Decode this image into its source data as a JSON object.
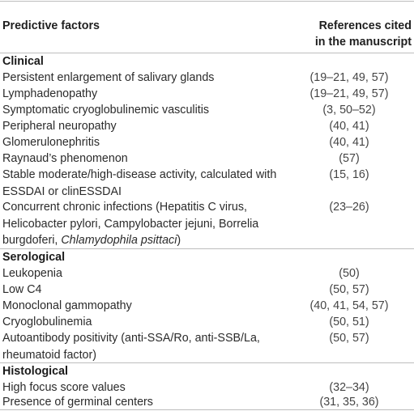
{
  "header": {
    "col_factors": "Predictive factors",
    "col_refs_line1": "References cited",
    "col_refs_line2": "in the manuscript"
  },
  "sections": [
    {
      "title": "Clinical",
      "rows": [
        {
          "factor": [
            "Persistent enlargement of salivary glands"
          ],
          "refs": "(19–21, 49, 57)"
        },
        {
          "factor": [
            "Lymphadenopathy"
          ],
          "refs": "(19–21, 49, 57)"
        },
        {
          "factor": [
            "Symptomatic cryoglobulinemic vasculitis"
          ],
          "refs": "(3, 50–52)"
        },
        {
          "factor": [
            "Peripheral neuropathy"
          ],
          "refs": "(40, 41)"
        },
        {
          "factor": [
            "Glomerulonephritis"
          ],
          "refs": "(40, 41)"
        },
        {
          "factor": [
            "Raynaud’s phenomenon"
          ],
          "refs": "(57)"
        },
        {
          "factor": [
            "Stable moderate/high-disease activity, calculated with",
            "ESSDAI or clinESSDAI"
          ],
          "refs": "(15, 16)"
        },
        {
          "factor": [
            "Concurrent chronic infections (Hepatitis C virus,",
            "Helicobacter pylori, Campylobacter jejuni, Borrelia",
            "burgdoferi, "
          ],
          "italic_tail": "Chlamydophila psittaci",
          "tail_after": ")",
          "refs": "(23–26)"
        }
      ]
    },
    {
      "title": "Serological",
      "rows": [
        {
          "factor": [
            "Leukopenia"
          ],
          "refs": "(50)"
        },
        {
          "factor": [
            "Low C4"
          ],
          "refs": "(50, 57)"
        },
        {
          "factor": [
            "Monoclonal gammopathy"
          ],
          "refs": "(40, 41, 54, 57)"
        },
        {
          "factor": [
            "Cryoglobulinemia"
          ],
          "refs": "(50, 51)"
        },
        {
          "factor": [
            "Autoantibody positivity (anti-SSA/Ro, anti-SSB/La,",
            "rheumatoid factor)"
          ],
          "refs": "(50, 57)"
        }
      ]
    },
    {
      "title": "Histological",
      "rows": [
        {
          "factor": [
            "High focus score values"
          ],
          "refs": "(32–34)"
        },
        {
          "factor": [
            "Presence of germinal centers"
          ],
          "refs": "(31, 35, 36)"
        }
      ]
    }
  ]
}
